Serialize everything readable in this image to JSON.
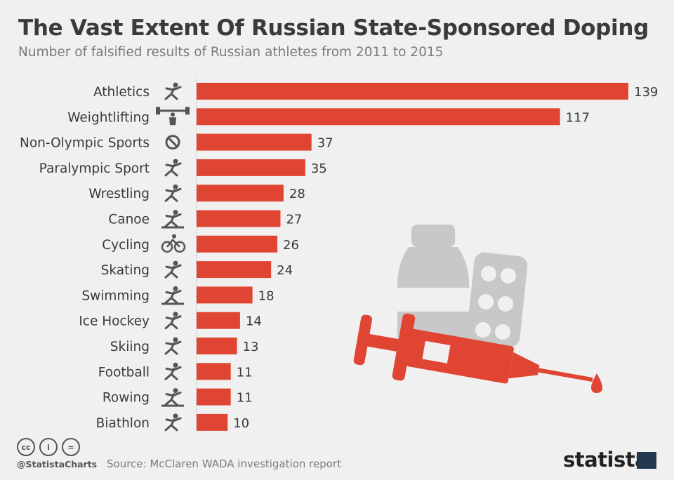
{
  "header": {
    "title": "The Vast Extent Of Russian State-Sponsored Doping",
    "subtitle": "Number of falsified results of Russian athletes from 2011 to 2015"
  },
  "footer": {
    "license_icons": [
      "cc",
      "by",
      "nd"
    ],
    "license_glyphs": {
      "cc": "cc",
      "by": "i",
      "nd": "="
    },
    "handle": "@StatistaCharts",
    "source": "Source: McClaren WADA investigation report",
    "brand": "statista"
  },
  "colors": {
    "bar": "#e04534",
    "background": "#f0f0f0",
    "text": "#3a3a3a",
    "icon": "#555555",
    "illustration_gray": "#c8c8c8"
  },
  "illustration": "medicine-bottle, pill-blister and syringe with blood drop",
  "chart_data": {
    "type": "bar",
    "orientation": "horizontal",
    "categories": [
      "Athletics",
      "Weightlifting",
      "Non-Olympic Sports",
      "Paralympic Sport",
      "Wrestling",
      "Canoe",
      "Cycling",
      "Skating",
      "Swimming",
      "Ice Hockey",
      "Skiing",
      "Football",
      "Rowing",
      "Biathlon"
    ],
    "values": [
      139,
      117,
      37,
      35,
      28,
      27,
      26,
      24,
      18,
      14,
      13,
      11,
      11,
      10
    ],
    "category_icons": [
      "running-icon",
      "weightlifting-icon",
      "prohibited-icon",
      "wheelchair-icon",
      "wrestling-icon",
      "canoe-icon",
      "cycling-icon",
      "skating-icon",
      "swimming-icon",
      "ice-hockey-icon",
      "skiing-icon",
      "football-icon",
      "rowing-icon",
      "biathlon-icon"
    ],
    "data_labels": true,
    "xlim": [
      0,
      139
    ],
    "grid": false
  }
}
